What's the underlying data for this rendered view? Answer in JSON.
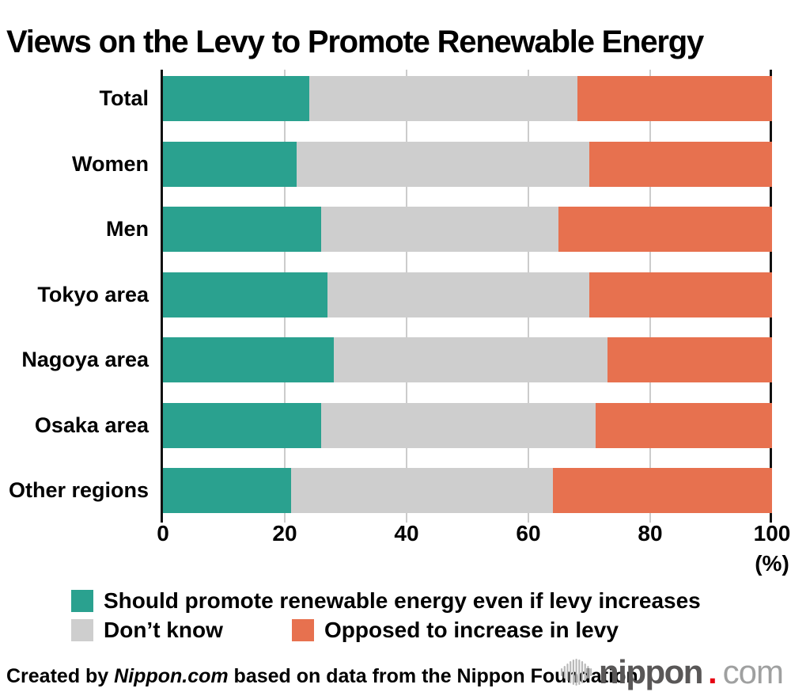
{
  "title": "Views on the Levy to Promote Renewable Energy",
  "chart_data": {
    "type": "bar",
    "orientation": "horizontal",
    "stacked": true,
    "title": "Views on the Levy to Promote Renewable Energy",
    "categories": [
      "Total",
      "Women",
      "Men",
      "Tokyo area",
      "Nagoya area",
      "Osaka area",
      "Other regions"
    ],
    "series": [
      {
        "name": "Should promote renewable energy even if levy increases",
        "color": "#2aa18f",
        "values": [
          24,
          22,
          26,
          27,
          28,
          26,
          21
        ]
      },
      {
        "name": "Don’t know",
        "color": "#cecece",
        "values": [
          44,
          48,
          39,
          43,
          45,
          45,
          43
        ]
      },
      {
        "name": "Opposed to increase in levy",
        "color": "#e7714f",
        "values": [
          32,
          30,
          35,
          30,
          27,
          29,
          36
        ]
      }
    ],
    "xlim": [
      0,
      100
    ],
    "x_ticks": [
      0,
      20,
      40,
      60,
      80,
      100
    ],
    "x_unit_label": "(%)",
    "grid": true,
    "legend_position": "bottom",
    "grid_color": "#cccccc",
    "axis_color": "#111111"
  },
  "footer": {
    "credit_prefix": "Created by ",
    "credit_source": "Nippon.com",
    "credit_suffix": " based on data from the Nippon Foundation.",
    "logo_name": "nippon",
    "logo_dot": ".",
    "logo_tld": "com",
    "logo_name_color": "#595757",
    "logo_dot_color": "#e60012",
    "logo_tld_color": "#9fa0a0",
    "logo_mark_color": "#b9b9b9"
  }
}
